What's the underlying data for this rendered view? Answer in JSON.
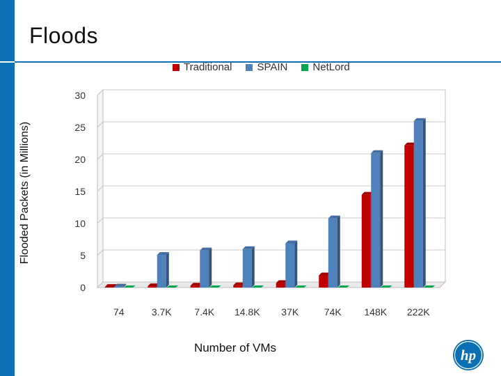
{
  "slide": {
    "title": "Floods",
    "logo_text": "hp"
  },
  "colors": {
    "accent": "#0b6fb5",
    "traditional": "#c00000",
    "spain": "#4f81bd",
    "netlord": "#00a650"
  },
  "chart_data": {
    "type": "bar",
    "title": "",
    "xlabel": "Number of VMs",
    "ylabel": "Flooded Packets (in Millions)",
    "categories": [
      "74",
      "3.7K",
      "7.4K",
      "14.8K",
      "37K",
      "74K",
      "148K",
      "222K"
    ],
    "yticks": [
      "0",
      "5",
      "10",
      "15",
      "20",
      "25",
      "30"
    ],
    "ylim": [
      0,
      30
    ],
    "grid": true,
    "legend_position": "top",
    "series": [
      {
        "name": "Traditional",
        "color": "#c00000",
        "values": [
          0.1,
          0.2,
          0.3,
          0.35,
          0.7,
          1.9,
          14.5,
          22.2
        ]
      },
      {
        "name": "SPAIN",
        "color": "#4f81bd",
        "values": [
          0.15,
          5.1,
          5.8,
          6.0,
          6.9,
          10.8,
          21.0,
          26.0
        ]
      },
      {
        "name": "NetLord",
        "color": "#00a650",
        "values": [
          0.05,
          0.05,
          0.05,
          0.05,
          0.05,
          0.05,
          0.05,
          0.05
        ]
      }
    ]
  }
}
